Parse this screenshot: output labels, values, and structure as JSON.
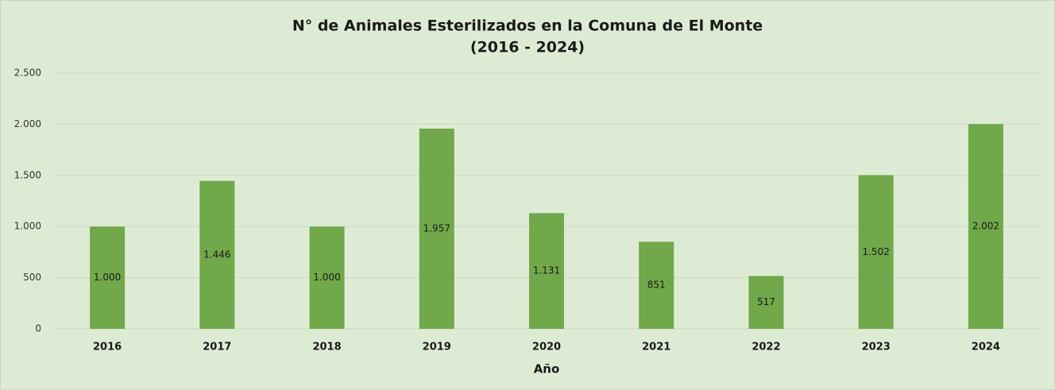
{
  "chart_data": {
    "type": "bar",
    "title": "N° de Animales Esterilizados en la Comuna de El Monte",
    "subtitle": "(2016 - 2024)",
    "x_label": "Año",
    "categories": [
      "2016",
      "2017",
      "2018",
      "2019",
      "2020",
      "2021",
      "2022",
      "2023",
      "2024"
    ],
    "values": [
      1000,
      1446,
      1000,
      1957,
      1131,
      851,
      517,
      1502,
      2002
    ],
    "value_labels": [
      "1.000",
      "1.446",
      "1.000",
      "1.957",
      "1.131",
      "851",
      "517",
      "1.502",
      "2.002"
    ],
    "color": "#70a84a",
    "ylim": [
      0,
      2500
    ],
    "yticks": [
      0,
      500,
      {
        "value": 1000,
        "label": "1.000"
      },
      {
        "value": 1500,
        "label": "1.500"
      },
      {
        "value": 2000,
        "label": "2.000"
      },
      {
        "value": 2500,
        "label": "2.500"
      }
    ],
    "grid": true
  }
}
